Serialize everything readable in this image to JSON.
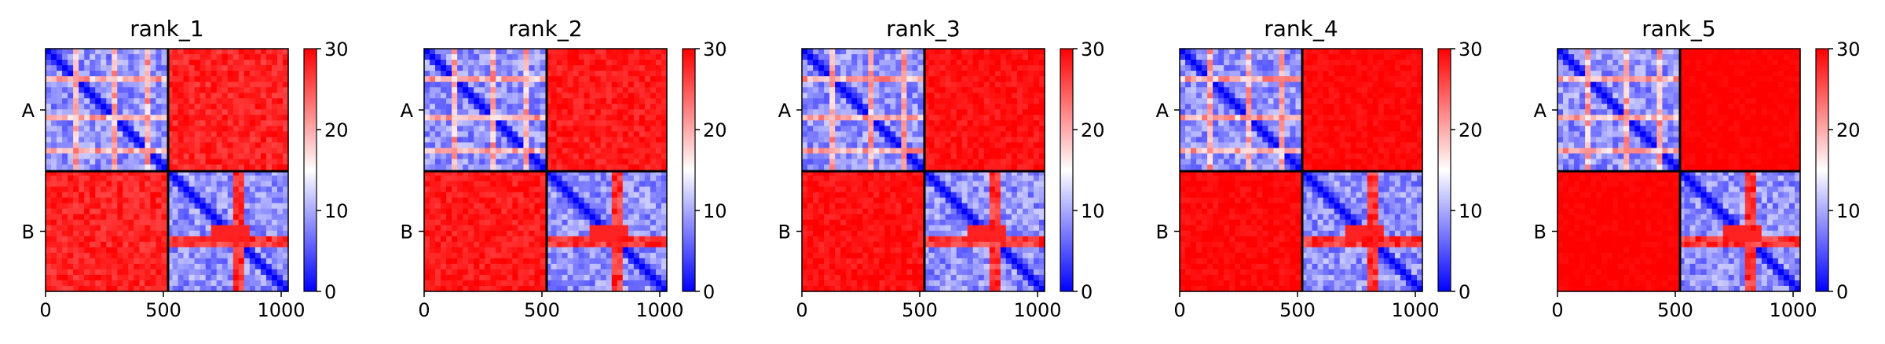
{
  "chart_data": [
    {
      "type": "heatmap",
      "title": "rank_1",
      "xticks": [
        0,
        500,
        1000
      ],
      "ylabels": [
        "A",
        "B"
      ],
      "colorbar": {
        "min": 0,
        "max": 30,
        "ticks": [
          0,
          10,
          20,
          30
        ],
        "colors": [
          "#0000ff",
          "#ffffff",
          "#ff0000"
        ]
      },
      "blocks": {
        "A-A": "low",
        "A-B": "high",
        "B-A": "high",
        "B-B": "low"
      }
    },
    {
      "type": "heatmap",
      "title": "rank_2",
      "xticks": [
        0,
        500,
        1000
      ],
      "ylabels": [
        "A",
        "B"
      ],
      "colorbar": {
        "min": 0,
        "max": 30,
        "ticks": [
          0,
          10,
          20,
          30
        ],
        "colors": [
          "#0000ff",
          "#ffffff",
          "#ff0000"
        ]
      },
      "blocks": {
        "A-A": "low",
        "A-B": "high",
        "B-A": "high",
        "B-B": "low"
      }
    },
    {
      "type": "heatmap",
      "title": "rank_3",
      "xticks": [
        0,
        500,
        1000
      ],
      "ylabels": [
        "A",
        "B"
      ],
      "colorbar": {
        "min": 0,
        "max": 30,
        "ticks": [
          0,
          10,
          20,
          30
        ],
        "colors": [
          "#0000ff",
          "#ffffff",
          "#ff0000"
        ]
      },
      "blocks": {
        "A-A": "low",
        "A-B": "high",
        "B-A": "high",
        "B-B": "low"
      }
    },
    {
      "type": "heatmap",
      "title": "rank_4",
      "xticks": [
        0,
        500,
        1000
      ],
      "ylabels": [
        "A",
        "B"
      ],
      "colorbar": {
        "min": 0,
        "max": 30,
        "ticks": [
          0,
          10,
          20,
          30
        ],
        "colors": [
          "#0000ff",
          "#ffffff",
          "#ff0000"
        ]
      },
      "blocks": {
        "A-A": "low",
        "A-B": "high",
        "B-A": "high",
        "B-B": "low"
      }
    },
    {
      "type": "heatmap",
      "title": "rank_5",
      "xticks": [
        0,
        500,
        1000
      ],
      "ylabels": [
        "A",
        "B"
      ],
      "colorbar": {
        "min": 0,
        "max": 30,
        "ticks": [
          0,
          10,
          20,
          30
        ],
        "colors": [
          "#0000ff",
          "#ffffff",
          "#ff0000"
        ]
      },
      "blocks": {
        "A-A": "low",
        "A-B": "high",
        "B-A": "high",
        "B-B": "low"
      }
    }
  ]
}
